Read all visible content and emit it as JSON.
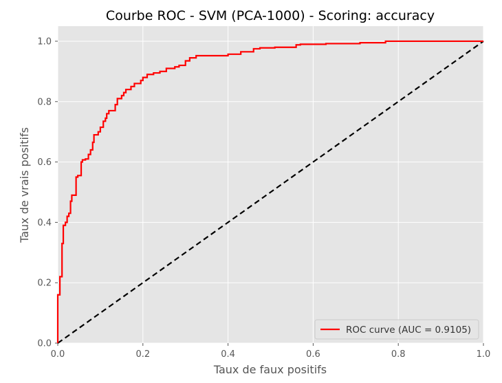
{
  "chart_data": {
    "type": "line",
    "title": "Courbe ROC - SVM (PCA-1000) - Scoring: accuracy",
    "xlabel": "Taux de faux positifs",
    "ylabel": "Taux de vrais positifs",
    "xlim": [
      0.0,
      1.0
    ],
    "ylim": [
      0.0,
      1.05
    ],
    "xticks": [
      "0.0",
      "0.2",
      "0.4",
      "0.6",
      "0.8",
      "1.0"
    ],
    "yticks": [
      "0.0",
      "0.2",
      "0.4",
      "0.6",
      "0.8",
      "1.0"
    ],
    "grid": true,
    "legend": {
      "placement": "lower-right",
      "entries": [
        "ROC curve (AUC = 0.9105)"
      ]
    },
    "colors": {
      "roc": "#ff0000",
      "diagonal": "#000000",
      "plot_bg": "#e5e5e5",
      "grid": "#ffffff"
    },
    "series": [
      {
        "name": "ROC curve (AUC = 0.9105)",
        "style": "step",
        "points": [
          [
            0.0,
            0.0
          ],
          [
            0.0,
            0.16
          ],
          [
            0.005,
            0.16
          ],
          [
            0.005,
            0.22
          ],
          [
            0.01,
            0.22
          ],
          [
            0.01,
            0.33
          ],
          [
            0.013,
            0.33
          ],
          [
            0.013,
            0.39
          ],
          [
            0.018,
            0.39
          ],
          [
            0.018,
            0.4
          ],
          [
            0.022,
            0.4
          ],
          [
            0.022,
            0.42
          ],
          [
            0.026,
            0.42
          ],
          [
            0.026,
            0.43
          ],
          [
            0.03,
            0.43
          ],
          [
            0.03,
            0.47
          ],
          [
            0.033,
            0.47
          ],
          [
            0.033,
            0.49
          ],
          [
            0.043,
            0.49
          ],
          [
            0.043,
            0.55
          ],
          [
            0.047,
            0.55
          ],
          [
            0.047,
            0.555
          ],
          [
            0.055,
            0.555
          ],
          [
            0.055,
            0.6
          ],
          [
            0.058,
            0.6
          ],
          [
            0.058,
            0.607
          ],
          [
            0.065,
            0.607
          ],
          [
            0.065,
            0.61
          ],
          [
            0.072,
            0.61
          ],
          [
            0.072,
            0.625
          ],
          [
            0.077,
            0.625
          ],
          [
            0.077,
            0.64
          ],
          [
            0.082,
            0.64
          ],
          [
            0.082,
            0.665
          ],
          [
            0.085,
            0.665
          ],
          [
            0.085,
            0.69
          ],
          [
            0.095,
            0.69
          ],
          [
            0.095,
            0.7
          ],
          [
            0.1,
            0.7
          ],
          [
            0.1,
            0.715
          ],
          [
            0.107,
            0.715
          ],
          [
            0.107,
            0.735
          ],
          [
            0.112,
            0.735
          ],
          [
            0.112,
            0.745
          ],
          [
            0.115,
            0.745
          ],
          [
            0.115,
            0.76
          ],
          [
            0.12,
            0.76
          ],
          [
            0.12,
            0.77
          ],
          [
            0.135,
            0.77
          ],
          [
            0.135,
            0.79
          ],
          [
            0.14,
            0.79
          ],
          [
            0.14,
            0.81
          ],
          [
            0.15,
            0.81
          ],
          [
            0.15,
            0.82
          ],
          [
            0.155,
            0.82
          ],
          [
            0.155,
            0.83
          ],
          [
            0.16,
            0.83
          ],
          [
            0.16,
            0.84
          ],
          [
            0.172,
            0.84
          ],
          [
            0.172,
            0.85
          ],
          [
            0.18,
            0.85
          ],
          [
            0.18,
            0.86
          ],
          [
            0.195,
            0.86
          ],
          [
            0.195,
            0.87
          ],
          [
            0.2,
            0.87
          ],
          [
            0.2,
            0.88
          ],
          [
            0.21,
            0.88
          ],
          [
            0.21,
            0.89
          ],
          [
            0.225,
            0.89
          ],
          [
            0.225,
            0.895
          ],
          [
            0.24,
            0.895
          ],
          [
            0.24,
            0.9
          ],
          [
            0.255,
            0.9
          ],
          [
            0.255,
            0.91
          ],
          [
            0.275,
            0.91
          ],
          [
            0.275,
            0.915
          ],
          [
            0.285,
            0.915
          ],
          [
            0.285,
            0.92
          ],
          [
            0.3,
            0.92
          ],
          [
            0.3,
            0.935
          ],
          [
            0.31,
            0.935
          ],
          [
            0.31,
            0.945
          ],
          [
            0.325,
            0.945
          ],
          [
            0.325,
            0.952
          ],
          [
            0.4,
            0.952
          ],
          [
            0.4,
            0.957
          ],
          [
            0.43,
            0.957
          ],
          [
            0.43,
            0.965
          ],
          [
            0.46,
            0.965
          ],
          [
            0.46,
            0.975
          ],
          [
            0.475,
            0.975
          ],
          [
            0.475,
            0.978
          ],
          [
            0.51,
            0.978
          ],
          [
            0.51,
            0.98
          ],
          [
            0.56,
            0.98
          ],
          [
            0.56,
            0.988
          ],
          [
            0.57,
            0.988
          ],
          [
            0.57,
            0.99
          ],
          [
            0.63,
            0.99
          ],
          [
            0.63,
            0.992
          ],
          [
            0.71,
            0.992
          ],
          [
            0.71,
            0.995
          ],
          [
            0.77,
            0.995
          ],
          [
            0.77,
            1.0
          ],
          [
            1.0,
            1.0
          ]
        ]
      },
      {
        "name": "",
        "style": "dashed",
        "points": [
          [
            0.0,
            0.0
          ],
          [
            1.0,
            1.0
          ]
        ]
      }
    ]
  }
}
